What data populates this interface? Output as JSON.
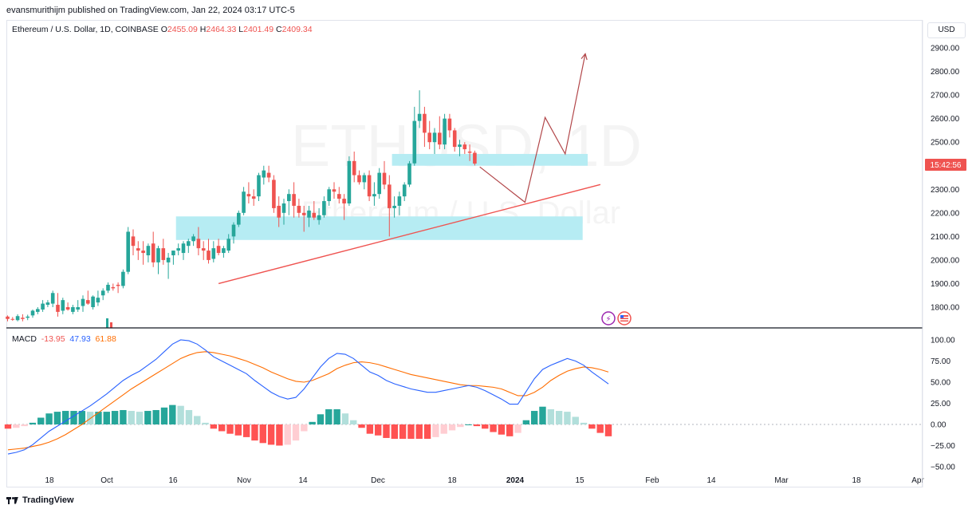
{
  "publisher_line": "evansmurithijm published on TradingView.com, Jan 22, 2024 03:17 UTC-5",
  "legend": {
    "symbol": "Ethereum / U.S. Dollar, 1D, COINBASE",
    "o_label": "O",
    "o": "2455.09",
    "h_label": "H",
    "h": "2464.33",
    "l_label": "L",
    "l": "2401.49",
    "c_label": "C",
    "c": "2409.34"
  },
  "currency_button": "USD",
  "countdown": "15:42:56",
  "watermark": {
    "line1": "ETHUSD, 1D",
    "line2": "Ethereum / U.S. Dollar"
  },
  "macd_legend": {
    "label": "MACD",
    "hist": "-13.95",
    "macd": "47.93",
    "signal": "61.88"
  },
  "footer_brand": "TradingView",
  "colors": {
    "up": "#26a69a",
    "down": "#ef5350",
    "zone": "#b2ebf2",
    "trend": "#ef5350",
    "macd_line": "#2962ff",
    "signal_line": "#ff6d00",
    "hist_up_strong": "#26a69a",
    "hist_up_weak": "#b2dfdb",
    "hist_down_strong": "#ff5252",
    "hist_down_weak": "#ffcdd2"
  },
  "chart_data": [
    {
      "type": "candlestick",
      "ylim": [
        1730,
        2960
      ],
      "yticks": [
        "2900.00",
        "2800.00",
        "2700.00",
        "2600.00",
        "2500.00",
        "2400.00",
        "2300.00",
        "2200.00",
        "2100.00",
        "2000.00",
        "1900.00",
        "1800.00"
      ],
      "xticks": [
        "18",
        "Oct",
        "16",
        "Nov",
        "14",
        "Dec",
        "18",
        "2024",
        "15",
        "Feb",
        "14",
        "Mar",
        "18",
        "Apr"
      ],
      "candles": [
        [
          1760,
          1765,
          1740,
          1750
        ],
        [
          1750,
          1758,
          1742,
          1748
        ],
        [
          1745,
          1770,
          1740,
          1762
        ],
        [
          1755,
          1770,
          1740,
          1750
        ],
        [
          1755,
          1768,
          1745,
          1760
        ],
        [
          1765,
          1790,
          1755,
          1785
        ],
        [
          1780,
          1800,
          1770,
          1792
        ],
        [
          1790,
          1830,
          1780,
          1815
        ],
        [
          1810,
          1830,
          1800,
          1820
        ],
        [
          1815,
          1870,
          1800,
          1860
        ],
        [
          1810,
          1860,
          1760,
          1780
        ],
        [
          1785,
          1840,
          1770,
          1830
        ],
        [
          1800,
          1820,
          1785,
          1790
        ],
        [
          1780,
          1810,
          1770,
          1800
        ],
        [
          1790,
          1830,
          1780,
          1800
        ],
        [
          1805,
          1850,
          1780,
          1835
        ],
        [
          1830,
          1870,
          1810,
          1815
        ],
        [
          1800,
          1850,
          1790,
          1845
        ],
        [
          1820,
          1870,
          1805,
          1840
        ],
        [
          1850,
          1880,
          1830,
          1870
        ],
        [
          1870,
          1905,
          1860,
          1895
        ],
        [
          1885,
          1900,
          1870,
          1880
        ],
        [
          1895,
          1905,
          1860,
          1890
        ],
        [
          1890,
          1960,
          1880,
          1950
        ],
        [
          1950,
          2140,
          1940,
          2120
        ],
        [
          2100,
          2130,
          2020,
          2060
        ],
        [
          2050,
          2080,
          2000,
          2040
        ],
        [
          2040,
          2080,
          1980,
          2030
        ],
        [
          2020,
          2070,
          1990,
          2060
        ],
        [
          2070,
          2120,
          1970,
          1990
        ],
        [
          1990,
          2060,
          1940,
          2050
        ],
        [
          2050,
          2090,
          1980,
          2000
        ],
        [
          1990,
          2030,
          1920,
          2010
        ],
        [
          2020,
          2040,
          1980,
          2040
        ],
        [
          2040,
          2070,
          2020,
          2050
        ],
        [
          2030,
          2080,
          2000,
          2070
        ],
        [
          2060,
          2090,
          2030,
          2080
        ],
        [
          2080,
          2110,
          2060,
          2100
        ],
        [
          2090,
          2140,
          2020,
          2050
        ],
        [
          2050,
          2080,
          2000,
          2040
        ],
        [
          2040,
          2090,
          1985,
          2000
        ],
        [
          2005,
          2080,
          1990,
          2050
        ],
        [
          2060,
          2090,
          2020,
          2030
        ],
        [
          2030,
          2060,
          2010,
          2050
        ],
        [
          2040,
          2110,
          2030,
          2090
        ],
        [
          2100,
          2160,
          2070,
          2150
        ],
        [
          2150,
          2210,
          2140,
          2200
        ],
        [
          2200,
          2310,
          2190,
          2290
        ],
        [
          2280,
          2330,
          2240,
          2270
        ],
        [
          2270,
          2300,
          2230,
          2260
        ],
        [
          2270,
          2370,
          2250,
          2360
        ],
        [
          2350,
          2400,
          2320,
          2380
        ],
        [
          2370,
          2400,
          2330,
          2350
        ],
        [
          2340,
          2360,
          2200,
          2220
        ],
        [
          2230,
          2270,
          2140,
          2180
        ],
        [
          2200,
          2260,
          2150,
          2240
        ],
        [
          2250,
          2300,
          2190,
          2280
        ],
        [
          2280,
          2330,
          2180,
          2230
        ],
        [
          2230,
          2260,
          2180,
          2200
        ],
        [
          2200,
          2230,
          2120,
          2190
        ],
        [
          2180,
          2230,
          2140,
          2210
        ],
        [
          2200,
          2250,
          2170,
          2180
        ],
        [
          2170,
          2220,
          2150,
          2190
        ],
        [
          2190,
          2270,
          2180,
          2250
        ],
        [
          2250,
          2310,
          2230,
          2300
        ],
        [
          2300,
          2330,
          2260,
          2290
        ],
        [
          2280,
          2310,
          2240,
          2260
        ],
        [
          2260,
          2280,
          2170,
          2240
        ],
        [
          2240,
          2440,
          2230,
          2420
        ],
        [
          2420,
          2460,
          2330,
          2360
        ],
        [
          2360,
          2380,
          2320,
          2330
        ],
        [
          2330,
          2370,
          2300,
          2360
        ],
        [
          2360,
          2380,
          2250,
          2270
        ],
        [
          2270,
          2330,
          2230,
          2280
        ],
        [
          2280,
          2390,
          2260,
          2370
        ],
        [
          2370,
          2420,
          2300,
          2320
        ],
        [
          2320,
          2360,
          2100,
          2220
        ],
        [
          2220,
          2270,
          2180,
          2230
        ],
        [
          2230,
          2290,
          2190,
          2270
        ],
        [
          2270,
          2330,
          2250,
          2320
        ],
        [
          2320,
          2420,
          2310,
          2410
        ],
        [
          2410,
          2650,
          2400,
          2590
        ],
        [
          2590,
          2720,
          2560,
          2620
        ],
        [
          2620,
          2650,
          2480,
          2540
        ],
        [
          2540,
          2590,
          2470,
          2500
        ],
        [
          2500,
          2560,
          2450,
          2540
        ],
        [
          2540,
          2610,
          2470,
          2490
        ],
        [
          2490,
          2620,
          2470,
          2600
        ],
        [
          2600,
          2620,
          2520,
          2550
        ],
        [
          2550,
          2560,
          2460,
          2480
        ],
        [
          2480,
          2510,
          2440,
          2490
        ],
        [
          2490,
          2500,
          2450,
          2470
        ],
        [
          2460,
          2490,
          2420,
          2455
        ],
        [
          2455,
          2464,
          2401,
          2409
        ]
      ],
      "zones": [
        {
          "from_index": 77,
          "to_index": 115,
          "low": 2400,
          "high": 2450
        },
        {
          "from_index": 34,
          "to_index": 114,
          "low": 2085,
          "high": 2185
        }
      ],
      "trendline": {
        "from": [
          42,
          1900
        ],
        "to": [
          118,
          2320
        ]
      },
      "projection": [
        [
          94,
          2395
        ],
        [
          103,
          2245
        ],
        [
          107,
          2605
        ],
        [
          111,
          2450
        ],
        [
          115,
          2875
        ]
      ],
      "macd": [
        -35,
        -33,
        -30,
        -24,
        -16,
        -8,
        -2,
        4,
        10,
        16,
        22,
        29,
        36,
        44,
        52,
        58,
        63,
        70,
        77,
        86,
        95,
        100,
        99,
        95,
        88,
        80,
        75,
        70,
        65,
        60,
        52,
        45,
        38,
        33,
        30,
        32,
        42,
        55,
        68,
        78,
        84,
        83,
        78,
        70,
        62,
        58,
        52,
        48,
        45,
        42,
        40,
        38,
        38,
        40,
        42,
        44,
        46,
        44,
        40,
        35,
        30,
        24,
        24,
        39,
        54,
        65,
        70,
        74,
        78,
        75,
        70,
        62,
        55,
        48
      ],
      "signal": [
        -30,
        -29,
        -28,
        -26,
        -24,
        -21,
        -17,
        -12,
        -6,
        0,
        7,
        14,
        21,
        28,
        35,
        42,
        48,
        54,
        60,
        66,
        72,
        78,
        82,
        85,
        86,
        85,
        83,
        81,
        78,
        75,
        71,
        67,
        62,
        58,
        54,
        51,
        50,
        52,
        56,
        60,
        66,
        70,
        73,
        74,
        73,
        71,
        68,
        65,
        62,
        59,
        57,
        55,
        53,
        51,
        49,
        47,
        46,
        46,
        45,
        44,
        42,
        38,
        34,
        34,
        38,
        44,
        52,
        58,
        63,
        66,
        68,
        67,
        65,
        62
      ],
      "macd_ylim": [
        -53,
        111
      ],
      "macd_yticks": [
        "100.00",
        "75.00",
        "50.00",
        "25.00",
        "0.00",
        "−25.00",
        "−50.00"
      ]
    }
  ]
}
